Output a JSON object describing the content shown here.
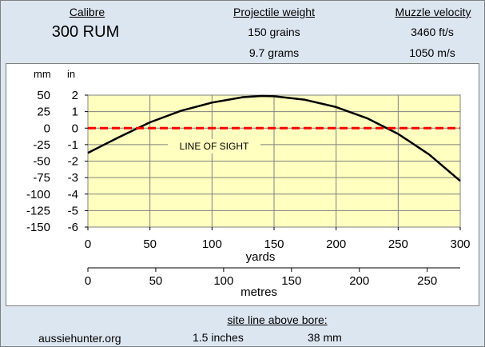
{
  "header": {
    "calibre_label": "Calibre",
    "calibre_value": "300 RUM",
    "weight_label": "Projectile weight",
    "weight_grains": "150 grains",
    "weight_grams": "9.7 grams",
    "velocity_label": "Muzzle velocity",
    "velocity_fps": "3460 ft/s",
    "velocity_mps": "1050 m/s"
  },
  "chart_data": {
    "type": "line",
    "title": "",
    "xlabel": "yards",
    "x2label": "metres",
    "ylabel_mm": "mm",
    "ylabel_in": "in",
    "x_ticks_yards": [
      "0",
      "50",
      "100",
      "150",
      "200",
      "250",
      "300"
    ],
    "x_ticks_metres": [
      "0",
      "50",
      "100",
      "150",
      "200",
      "250"
    ],
    "y_ticks_in": [
      "2",
      "1",
      "0",
      "-1",
      "-2",
      "-3",
      "-4",
      "-5",
      "-6"
    ],
    "y_ticks_mm": [
      "50",
      "25",
      "0",
      "-25",
      "-50",
      "-75",
      "-100",
      "-125",
      "-150"
    ],
    "xlim_yards": [
      0,
      300
    ],
    "ylim_in": [
      -6,
      2
    ],
    "grid": true,
    "annotation": "LINE OF SIGHT",
    "series": [
      {
        "name": "trajectory",
        "color": "#000000",
        "x": [
          0,
          25,
          50,
          75,
          100,
          125,
          140,
          150,
          175,
          200,
          225,
          250,
          275,
          300
        ],
        "y": [
          -1.5,
          -0.55,
          0.35,
          1.05,
          1.55,
          1.88,
          1.95,
          1.93,
          1.72,
          1.28,
          0.6,
          -0.35,
          -1.6,
          -3.2
        ]
      },
      {
        "name": "line of sight",
        "color": "#ff0000",
        "x": [
          0,
          300
        ],
        "y": [
          0,
          0
        ]
      }
    ]
  },
  "footer": {
    "site_label": "site line above bore:",
    "website": "aussiehunter.org",
    "sight_in": "1.5 inches",
    "sight_mm": "38 mm"
  }
}
